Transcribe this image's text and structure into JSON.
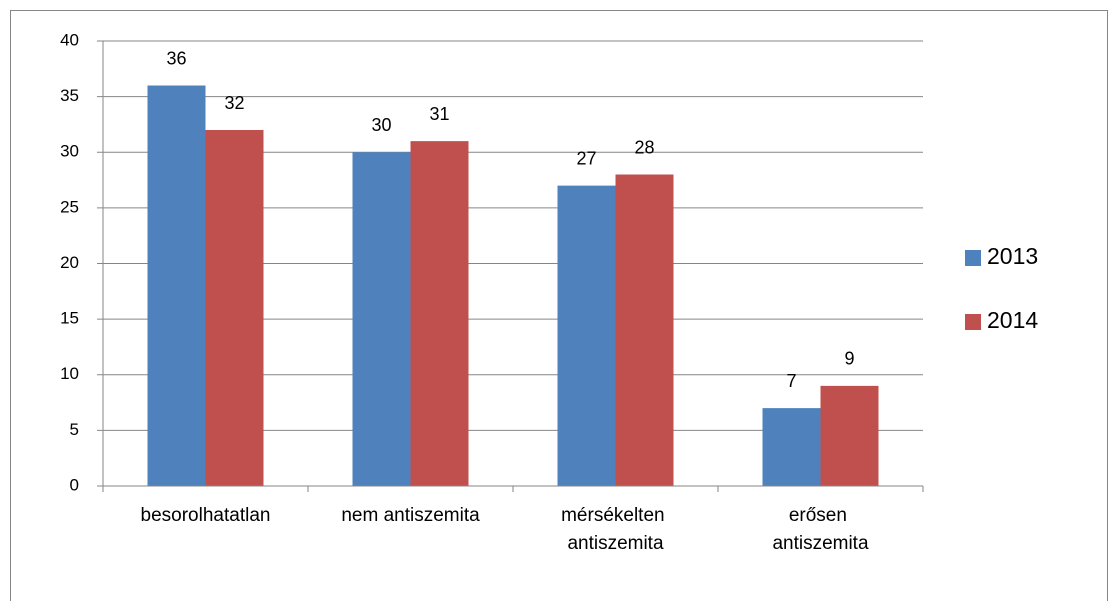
{
  "chart_data": {
    "type": "bar",
    "categories": [
      "besorolhatatlan",
      "nem antiszemita",
      "mérsékelten antiszemita",
      "erősen antiszemita"
    ],
    "series": [
      {
        "name": "2013",
        "color": "#4f81bd",
        "values": [
          36,
          30,
          27,
          7
        ]
      },
      {
        "name": "2014",
        "color": "#c0504d",
        "values": [
          32,
          31,
          28,
          9
        ]
      }
    ],
    "ylim": [
      0,
      40
    ],
    "yticks": [
      0,
      5,
      10,
      15,
      20,
      25,
      30,
      35,
      40
    ],
    "grid": true,
    "legend": "right"
  }
}
